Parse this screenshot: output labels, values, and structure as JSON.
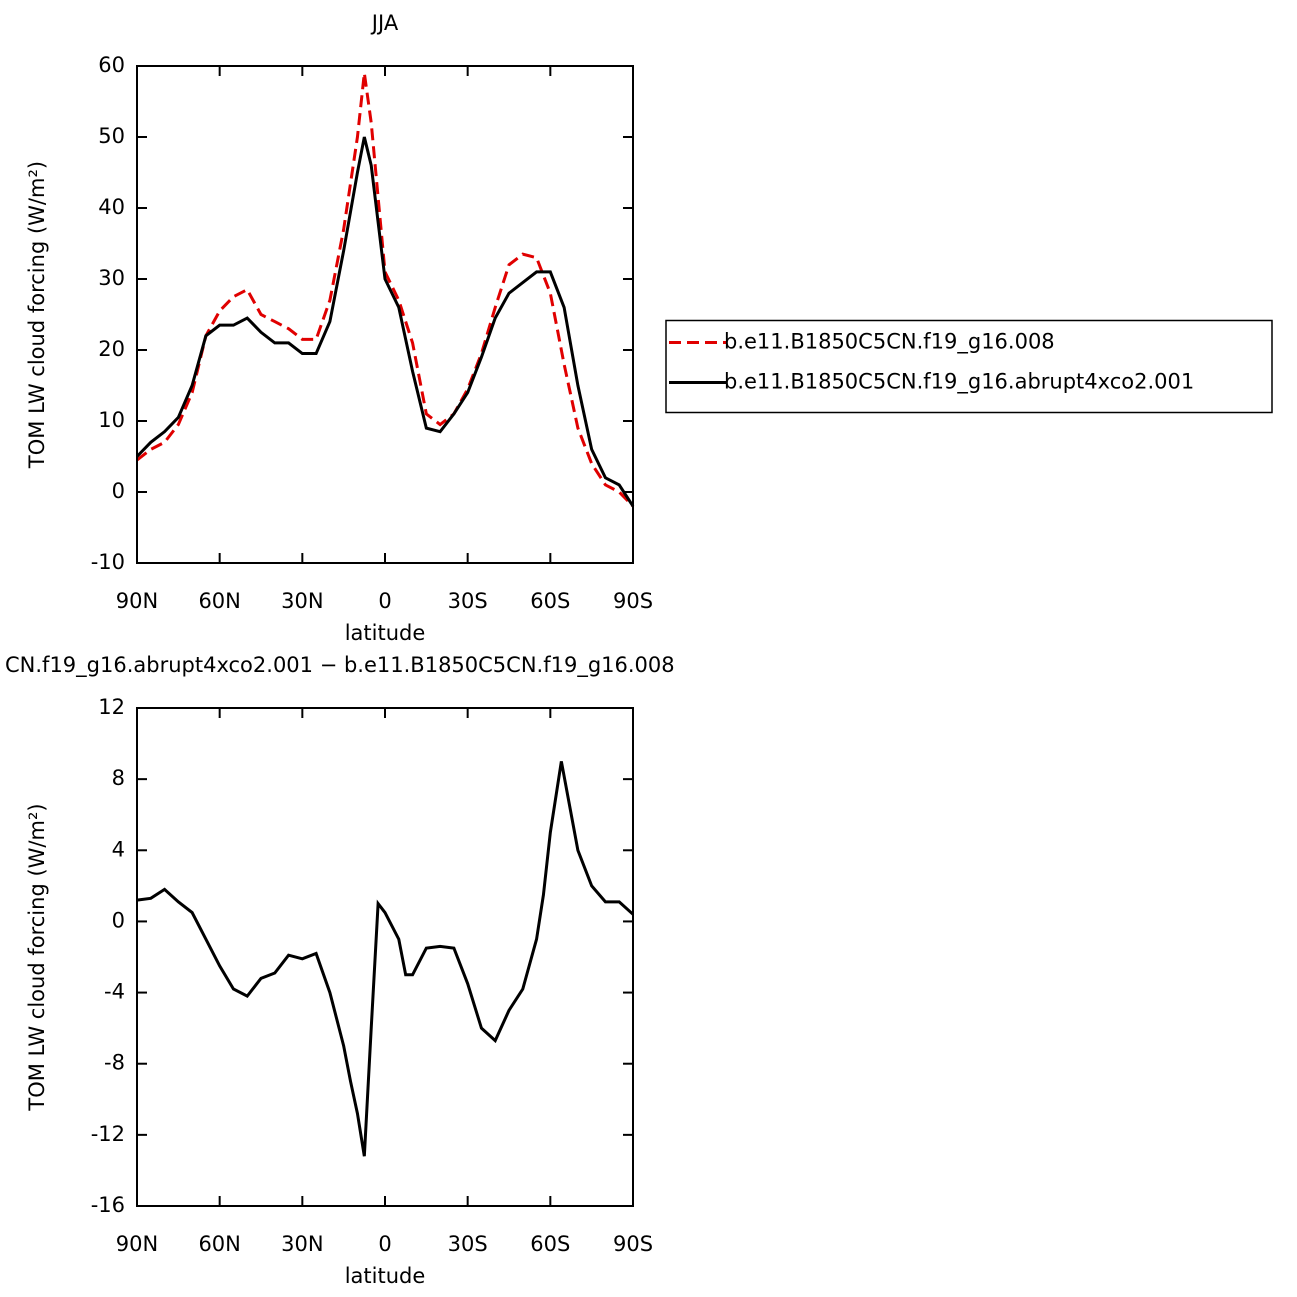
{
  "chart_data": [
    {
      "type": "line",
      "title": "JJA",
      "xlabel": "latitude",
      "ylabel": "TOM LW cloud forcing (W/m²)",
      "x": [
        90,
        85,
        80,
        75,
        70,
        65,
        60,
        55,
        50,
        45,
        40,
        35,
        30,
        25,
        20,
        15,
        10,
        7.5,
        5,
        0,
        -5,
        -10,
        -15,
        -20,
        -25,
        -30,
        -35,
        -40,
        -45,
        -50,
        -55,
        -60,
        -65,
        -70,
        -75,
        -80,
        -85,
        -90
      ],
      "xlim": [
        90,
        -90
      ],
      "xticks": [
        {
          "value": 90,
          "label": "90N"
        },
        {
          "value": 60,
          "label": "60N"
        },
        {
          "value": 30,
          "label": "30N"
        },
        0,
        {
          "value": -30,
          "label": "30S"
        },
        {
          "value": -60,
          "label": "60S"
        },
        {
          "value": -90,
          "label": "90S"
        }
      ],
      "ylim": [
        -10,
        60
      ],
      "yticks": [
        -10,
        0,
        10,
        20,
        30,
        40,
        50,
        60
      ],
      "legend": "right",
      "series": [
        {
          "name": "b.e11.B1850C5CN.f19_g16.008",
          "color": "#e00000",
          "line_style": "dashed",
          "values": [
            4.5,
            6,
            7,
            9.5,
            14,
            22,
            25.5,
            27.5,
            28.5,
            25,
            24,
            23,
            21.5,
            21.5,
            27,
            37,
            50,
            59,
            52,
            31,
            27,
            21,
            11,
            9.5,
            11,
            14.5,
            19.5,
            26,
            32,
            33.5,
            33,
            28,
            18,
            9,
            4,
            1,
            0,
            -2
          ]
        },
        {
          "name": "b.e11.B1850C5CN.f19_g16.abrupt4xco2.001",
          "color": "#000000",
          "line_style": "solid",
          "values": [
            5,
            7,
            8.5,
            10.5,
            15,
            22,
            23.5,
            23.5,
            24.5,
            22.5,
            21,
            21,
            19.5,
            19.5,
            24,
            34,
            45,
            50,
            46,
            30,
            26,
            17,
            9,
            8.5,
            11,
            14,
            19,
            24.5,
            28,
            29.5,
            31,
            31,
            26,
            15,
            6,
            2,
            1,
            -2
          ]
        }
      ]
    },
    {
      "type": "line",
      "title": "CN.f19_g16.abrupt4xco2.001 − b.e11.B1850C5CN.f19_g16.008",
      "xlabel": "latitude",
      "ylabel": "TOM LW cloud forcing (W/m²)",
      "x": [
        90,
        85,
        80,
        75,
        70,
        65,
        60,
        55,
        50,
        45,
        40,
        35,
        30,
        25,
        20,
        15,
        12.5,
        10,
        7.5,
        5,
        2.5,
        0,
        -5,
        -7.5,
        -10,
        -15,
        -20,
        -25,
        -30,
        -35,
        -40,
        -45,
        -50,
        -55,
        -57.5,
        -60,
        -64,
        -70,
        -75,
        -80,
        -85,
        -90
      ],
      "xlim": [
        90,
        -90
      ],
      "xticks": [
        {
          "value": 90,
          "label": "90N"
        },
        {
          "value": 60,
          "label": "60N"
        },
        {
          "value": 30,
          "label": "30N"
        },
        0,
        {
          "value": -30,
          "label": "30S"
        },
        {
          "value": -60,
          "label": "60S"
        },
        {
          "value": -90,
          "label": "90S"
        }
      ],
      "ylim": [
        -16,
        12
      ],
      "yticks": [
        -16,
        -12,
        -8,
        -4,
        0,
        4,
        8,
        12
      ],
      "series": [
        {
          "color": "#000000",
          "line_style": "solid",
          "values": [
            1.2,
            1.3,
            1.8,
            1.1,
            0.5,
            -1,
            -2.5,
            -3.8,
            -4.2,
            -3.2,
            -2.9,
            -1.9,
            -2.1,
            -1.8,
            -4,
            -7,
            -9,
            -10.8,
            -13.2,
            -6,
            1,
            0.5,
            -1,
            -3,
            -3,
            -1.5,
            -1.4,
            -1.5,
            -3.5,
            -6,
            -6.7,
            -5,
            -3.8,
            -1,
            1.5,
            5,
            9,
            4,
            2,
            1.1,
            1.1,
            0.4
          ]
        }
      ]
    }
  ]
}
